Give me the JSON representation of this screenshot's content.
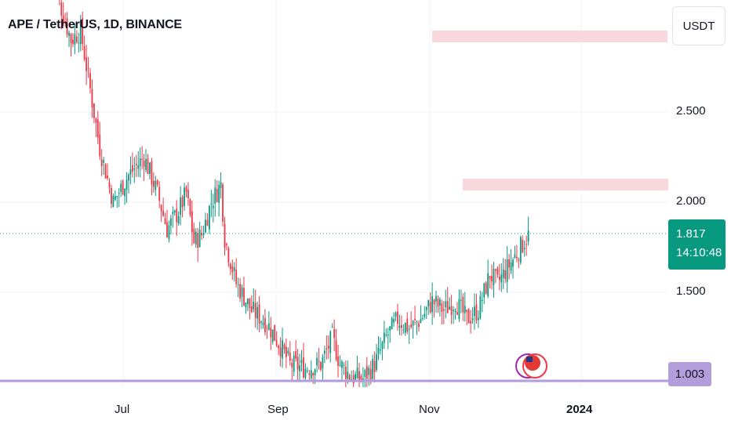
{
  "header": {
    "title": "APE / TetherUS, 1D, BINANCE"
  },
  "axis": {
    "unit_label": "USDT",
    "y_ticks": [
      "2.500",
      "2.000",
      "1.500"
    ],
    "x_ticks": [
      "Jul",
      "Sep",
      "Nov",
      "2024"
    ]
  },
  "current_price": {
    "value": "1.817",
    "countdown": "14:10:48",
    "color": "#089981"
  },
  "level_line": {
    "value": "1.003",
    "color": "#b39ddb"
  },
  "zones": {
    "color": "#f8d7dd"
  },
  "colors": {
    "up": "#089981",
    "down": "#f23645"
  }
}
